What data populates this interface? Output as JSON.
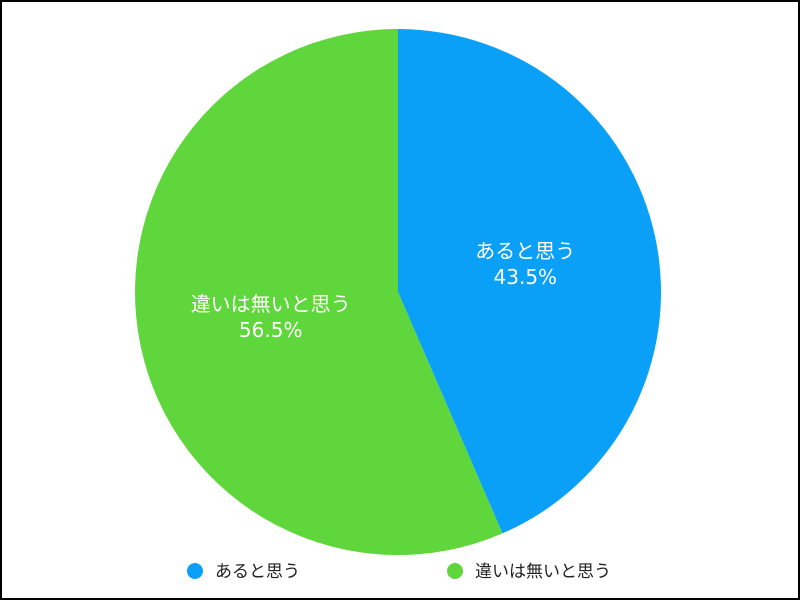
{
  "chart_data": {
    "type": "pie",
    "categories": [
      "あると思う",
      "違いは無いと思う"
    ],
    "values": [
      43.5,
      56.5
    ],
    "value_labels": [
      "43.5%",
      "56.5%"
    ],
    "colors": [
      "#0aa0f8",
      "#5fd63b"
    ],
    "legend": "bottom"
  }
}
